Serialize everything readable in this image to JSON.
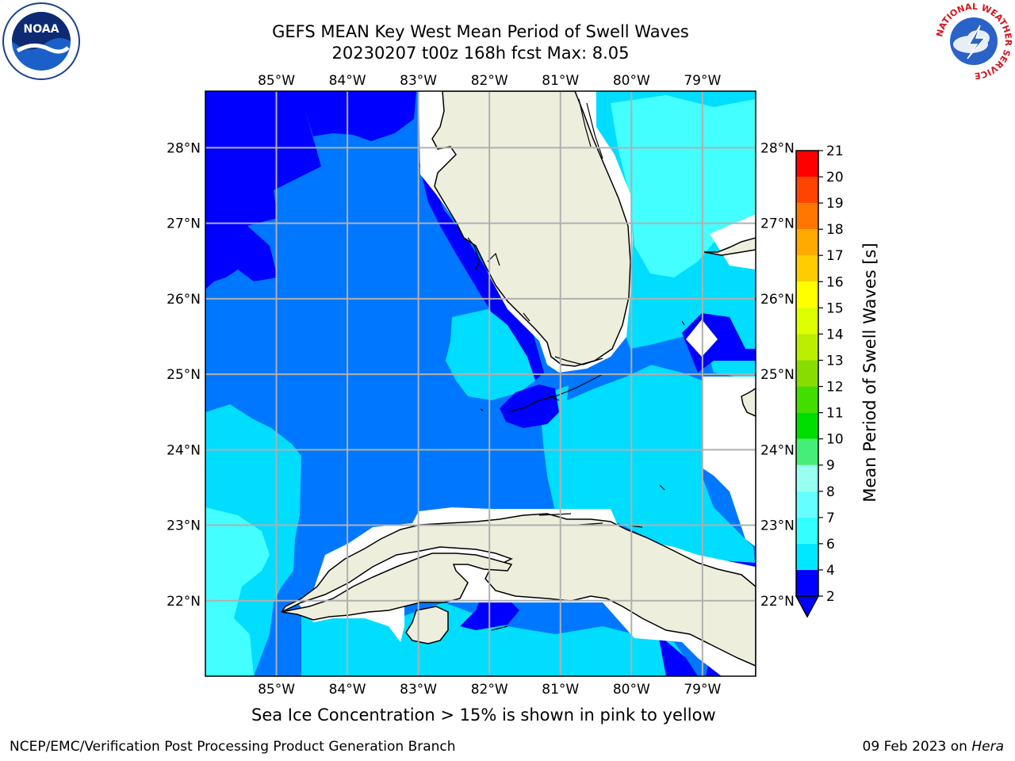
{
  "header": {
    "title_line1": "GEFS MEAN Key West Mean Period of Swell Waves",
    "title_line2": "20230207 t00z 168h fcst   Max: 8.05"
  },
  "map": {
    "lon_labels": [
      "85°W",
      "84°W",
      "83°W",
      "82°W",
      "81°W",
      "80°W",
      "79°W"
    ],
    "lat_labels": [
      "28°N",
      "27°N",
      "26°N",
      "25°N",
      "24°N",
      "23°N",
      "22°N"
    ],
    "extent": {
      "lon_min": -86.0,
      "lon_max": -78.25,
      "lat_min": 21.0,
      "lat_max": 28.75
    },
    "grid": true
  },
  "colorbar": {
    "title": "Mean Period of Swell Waves [s]",
    "ticks": [
      "2",
      "4",
      "6",
      "7",
      "8",
      "9",
      "10",
      "11",
      "12",
      "13",
      "14",
      "15",
      "16",
      "17",
      "18",
      "19",
      "20",
      "21"
    ],
    "tick_values": [
      2,
      4,
      6,
      7,
      8,
      9,
      10,
      11,
      12,
      13,
      14,
      15,
      16,
      17,
      18,
      19,
      20,
      21
    ],
    "bands": [
      {
        "from": 2,
        "to": 4,
        "color": "#0000ff"
      },
      {
        "from": 4,
        "to": 6,
        "color": "#00e8ff"
      },
      {
        "from": 6,
        "to": 7,
        "color": "#33ffff"
      },
      {
        "from": 7,
        "to": 8,
        "color": "#66ffff"
      },
      {
        "from": 8,
        "to": 9,
        "color": "#99ffee"
      },
      {
        "from": 9,
        "to": 10,
        "color": "#44ee77"
      },
      {
        "from": 10,
        "to": 11,
        "color": "#00dd00"
      },
      {
        "from": 11,
        "to": 12,
        "color": "#44dd00"
      },
      {
        "from": 12,
        "to": 13,
        "color": "#88dd00"
      },
      {
        "from": 13,
        "to": 14,
        "color": "#bbee00"
      },
      {
        "from": 14,
        "to": 15,
        "color": "#ddff00"
      },
      {
        "from": 15,
        "to": 16,
        "color": "#ffff00"
      },
      {
        "from": 16,
        "to": 17,
        "color": "#ffcc00"
      },
      {
        "from": 17,
        "to": 18,
        "color": "#ffaa00"
      },
      {
        "from": 18,
        "to": 19,
        "color": "#ff7700"
      },
      {
        "from": 19,
        "to": 20,
        "color": "#ff4400"
      },
      {
        "from": 20,
        "to": 21,
        "color": "#ff0000"
      }
    ]
  },
  "colors": {
    "deep_blue": "#0000ff",
    "mid_blue": "#0077ff",
    "light_blue": "#00ddff",
    "cyan": "#44ffff",
    "land": "#eeeedd",
    "grid": "#b0b0b0"
  },
  "logos": {
    "noaa_text": "NOAA",
    "nws_ring_text": "NATIONAL WEATHER SERVICE"
  },
  "footer": {
    "note": "Sea Ice Concentration > 15% is shown in pink to yellow",
    "left": "NCEP/EMC/Verification Post Processing Product Generation Branch",
    "date": "09 Feb 2023 on ",
    "host": "Hera"
  }
}
